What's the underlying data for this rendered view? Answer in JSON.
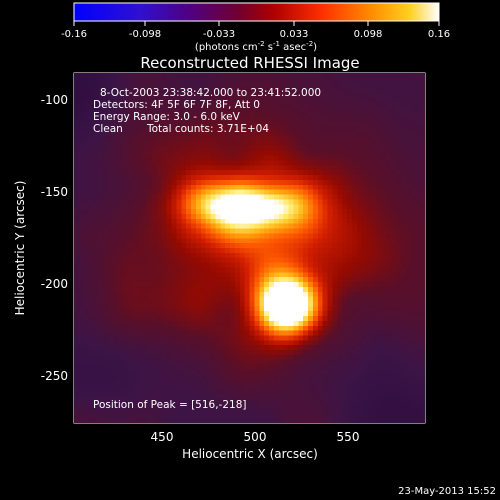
{
  "colorbar": {
    "ticks": [
      "-0.16",
      "-0.098",
      "-0.033",
      "0.033",
      "0.098",
      "0.16"
    ],
    "tick_values": [
      -0.16,
      -0.098,
      -0.033,
      0.033,
      0.098,
      0.16
    ],
    "range": [
      -0.16,
      0.16
    ],
    "units_label": "(photons cm",
    "units_exp1": "-2",
    "units_mid": " s",
    "units_exp2": "-1",
    "units_tail": " asec",
    "units_exp3": "-2",
    "units_close": ")",
    "colors": [
      "#0000ff",
      "#4000c0",
      "#600080",
      "#800040",
      "#c00000",
      "#ff4000",
      "#ff9000",
      "#ffd000",
      "#ffffff"
    ]
  },
  "image": {
    "title": "Reconstructed RHESSI Image",
    "annotations": {
      "time_range": "8-Oct-2003 23:38:42.000 to 23:41:52.000",
      "detectors": "Detectors: 4F 5F 6F 7F 8F, Att 0",
      "energy_range": "Energy Range: 3.0 - 6.0 keV",
      "method": "Clean",
      "total_counts": "Total counts: 3.71E+04",
      "peak_position": "Position of Peak = [516,-218]"
    },
    "peaks": [
      {
        "x": 490,
        "y": -168,
        "intensity": 0.13
      },
      {
        "x": 516,
        "y": -218,
        "intensity": 0.16
      }
    ]
  },
  "axes": {
    "x": {
      "label": "Heliocentric X (arcsec)",
      "ticks": [
        "450",
        "500",
        "550"
      ],
      "tick_values": [
        450,
        500,
        550
      ],
      "range": [
        405,
        590
      ]
    },
    "y": {
      "label": "Heliocentric Y (arcsec)",
      "ticks": [
        "-100",
        "-150",
        "-200",
        "-250"
      ],
      "tick_values": [
        -100,
        -150,
        -200,
        -250
      ],
      "range": [
        -88,
        -276
      ]
    }
  },
  "footer": {
    "timestamp": "23-May-2013 15:52"
  }
}
